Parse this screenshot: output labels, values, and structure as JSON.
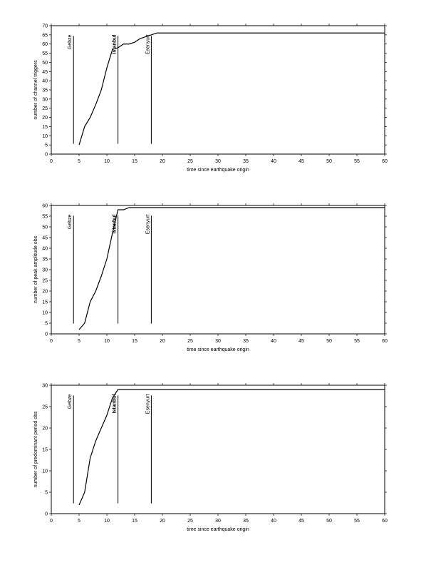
{
  "chart_data": [
    {
      "type": "line",
      "ylabel": "number of channel triggers",
      "xlabel": "time since earthquake origin",
      "x": [
        5,
        6,
        7,
        8,
        9,
        10,
        11,
        12,
        13,
        14,
        15,
        16,
        17,
        18,
        19,
        60
      ],
      "values": [
        5,
        15,
        20,
        27,
        35,
        47,
        57,
        58,
        60,
        60,
        61,
        63,
        64,
        65,
        66,
        66
      ],
      "color": "#000000",
      "xlim": [
        0,
        60
      ],
      "ylim": [
        0,
        70
      ],
      "xticks": [
        0,
        5,
        10,
        15,
        20,
        25,
        30,
        35,
        40,
        45,
        50,
        55,
        60
      ],
      "yticks": [
        0,
        5,
        10,
        15,
        20,
        25,
        30,
        35,
        40,
        45,
        50,
        55,
        60,
        65,
        70
      ],
      "annotations": [
        {
          "label": "Gebze",
          "x": 4
        },
        {
          "label": "Istanbul",
          "x": 12
        },
        {
          "label": "Esenyurt",
          "x": 18
        }
      ]
    },
    {
      "type": "line",
      "ylabel": "number of peak amplitude obs",
      "xlabel": "time since earthquake origin",
      "x": [
        5,
        6,
        7,
        8,
        9,
        10,
        11,
        12,
        13,
        14,
        60
      ],
      "values": [
        2,
        5,
        15,
        20,
        27,
        35,
        47,
        58,
        58,
        59,
        59
      ],
      "color": "#000000",
      "xlim": [
        0,
        60
      ],
      "ylim": [
        0,
        60
      ],
      "xticks": [
        0,
        5,
        10,
        15,
        20,
        25,
        30,
        35,
        40,
        45,
        50,
        55,
        60
      ],
      "yticks": [
        0,
        5,
        10,
        15,
        20,
        25,
        30,
        35,
        40,
        45,
        50,
        55,
        60
      ],
      "annotations": [
        {
          "label": "Gebze",
          "x": 4
        },
        {
          "label": "Istanbul",
          "x": 12
        },
        {
          "label": "Esenyurt",
          "x": 18
        }
      ]
    },
    {
      "type": "line",
      "ylabel": "number of predominant period obs",
      "xlabel": "time since earthquake origin",
      "x": [
        5,
        6,
        7,
        8,
        9,
        10,
        11,
        12,
        60
      ],
      "values": [
        2,
        5,
        13,
        17,
        20,
        23,
        27,
        29,
        29
      ],
      "color": "#000000",
      "xlim": [
        0,
        60
      ],
      "ylim": [
        0,
        30
      ],
      "xticks": [
        0,
        5,
        10,
        15,
        20,
        25,
        30,
        35,
        40,
        45,
        50,
        55,
        60
      ],
      "yticks": [
        0,
        5,
        10,
        15,
        20,
        25,
        30
      ],
      "annotations": [
        {
          "label": "Gebze",
          "x": 4
        },
        {
          "label": "Istanbul",
          "x": 12
        },
        {
          "label": "Esenyurt",
          "x": 18
        }
      ]
    }
  ]
}
